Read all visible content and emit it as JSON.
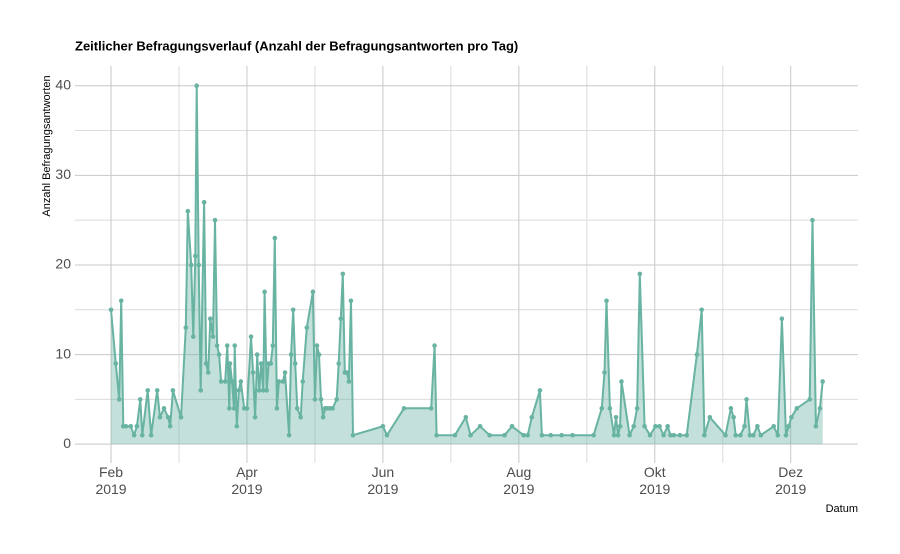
{
  "chart_data": {
    "type": "area_line",
    "title": "Zeitlicher Befragungsverlauf (Anzahl der Befragungsantworten pro Tag)",
    "y_label": "Anzahl Befragungsantworten",
    "x_label": "Datum",
    "color": "#69b3a2",
    "grid": true,
    "xlim": [
      1.47,
      12.99
    ],
    "ylim": [
      -2.1,
      42.2
    ],
    "xticks": [
      {
        "value": 2,
        "label": "Feb\n2019"
      },
      {
        "value": 4,
        "label": "Apr\n2019"
      },
      {
        "value": 6,
        "label": "Jun\n2019"
      },
      {
        "value": 8,
        "label": "Aug\n2019"
      },
      {
        "value": 10,
        "label": "Okt\n2019"
      },
      {
        "value": 12,
        "label": "Dez\n2019"
      }
    ],
    "x_minor_ticks": [
      3,
      5,
      7,
      9,
      11
    ],
    "yticks": [
      0,
      10,
      20,
      30,
      40
    ],
    "y_minor_ticks": [
      5,
      15,
      25,
      35
    ],
    "x": [
      2.0,
      2.07,
      2.12,
      2.15,
      2.18,
      2.22,
      2.29,
      2.34,
      2.38,
      2.43,
      2.46,
      2.54,
      2.59,
      2.68,
      2.72,
      2.78,
      2.84,
      2.87,
      2.91,
      3.03,
      3.1,
      3.13,
      3.18,
      3.21,
      3.24,
      3.26,
      3.29,
      3.32,
      3.37,
      3.4,
      3.43,
      3.46,
      3.5,
      3.53,
      3.56,
      3.59,
      3.62,
      3.68,
      3.71,
      3.74,
      3.75,
      3.78,
      3.81,
      3.82,
      3.85,
      3.88,
      3.91,
      3.96,
      4.0,
      4.06,
      4.09,
      4.12,
      4.15,
      4.18,
      4.21,
      4.24,
      4.26,
      4.29,
      4.32,
      4.35,
      4.38,
      4.41,
      4.44,
      4.47,
      4.53,
      4.56,
      4.62,
      4.65,
      4.68,
      4.71,
      4.74,
      4.79,
      4.82,
      4.88,
      4.97,
      5.0,
      5.03,
      5.06,
      5.09,
      5.12,
      5.15,
      5.18,
      5.22,
      5.26,
      5.32,
      5.35,
      5.38,
      5.41,
      5.44,
      5.47,
      5.5,
      5.53,
      5.56,
      6.0,
      6.06,
      6.31,
      6.71,
      6.76,
      6.79,
      7.06,
      7.22,
      7.29,
      7.43,
      7.57,
      7.79,
      7.9,
      8.07,
      8.13,
      8.19,
      8.31,
      8.34,
      8.47,
      8.63,
      8.79,
      9.1,
      9.22,
      9.26,
      9.29,
      9.34,
      9.4,
      9.43,
      9.46,
      9.49,
      9.51,
      9.63,
      9.69,
      9.74,
      9.78,
      9.85,
      9.93,
      10.01,
      10.07,
      10.13,
      10.19,
      10.23,
      10.28,
      10.37,
      10.47,
      10.62,
      10.69,
      10.73,
      10.81,
      11.04,
      11.12,
      11.16,
      11.19,
      11.26,
      11.32,
      11.35,
      11.4,
      11.45,
      11.51,
      11.56,
      11.75,
      11.81,
      11.87,
      11.93,
      11.97,
      12.01,
      12.09,
      12.28,
      12.32,
      12.37,
      12.43,
      12.47
    ],
    "values": [
      15,
      9,
      5,
      16,
      2,
      2,
      2,
      1,
      2,
      5,
      1,
      6,
      1,
      6,
      3,
      4,
      3,
      2,
      6,
      3,
      13,
      26,
      20,
      12,
      21,
      40,
      20,
      6,
      27,
      9,
      8,
      14,
      12,
      25,
      11,
      10,
      7,
      7,
      11,
      4,
      9,
      7,
      4,
      11,
      2,
      6,
      7,
      4,
      4,
      12,
      8,
      3,
      10,
      6,
      9,
      6,
      17,
      6,
      9,
      9,
      11,
      23,
      4,
      7,
      7,
      8,
      1,
      10,
      15,
      9,
      4,
      3,
      7,
      13,
      17,
      5,
      11,
      10,
      5,
      3,
      4,
      4,
      4,
      4,
      5,
      9,
      14,
      19,
      8,
      8,
      7,
      16,
      1,
      2,
      1,
      4,
      4,
      11,
      1,
      1,
      3,
      1,
      2,
      1,
      1,
      2,
      1,
      1,
      3,
      6,
      1,
      1,
      1,
      1,
      1,
      4,
      8,
      16,
      4,
      1,
      3,
      1,
      2,
      7,
      1,
      2,
      4,
      19,
      2,
      1,
      2,
      2,
      1,
      2,
      1,
      1,
      1,
      1,
      10,
      15,
      1,
      3,
      1,
      4,
      3,
      1,
      1,
      2,
      5,
      1,
      1,
      2,
      1,
      2,
      1,
      14,
      1,
      2,
      3,
      4,
      5,
      25,
      2,
      4,
      7
    ]
  }
}
